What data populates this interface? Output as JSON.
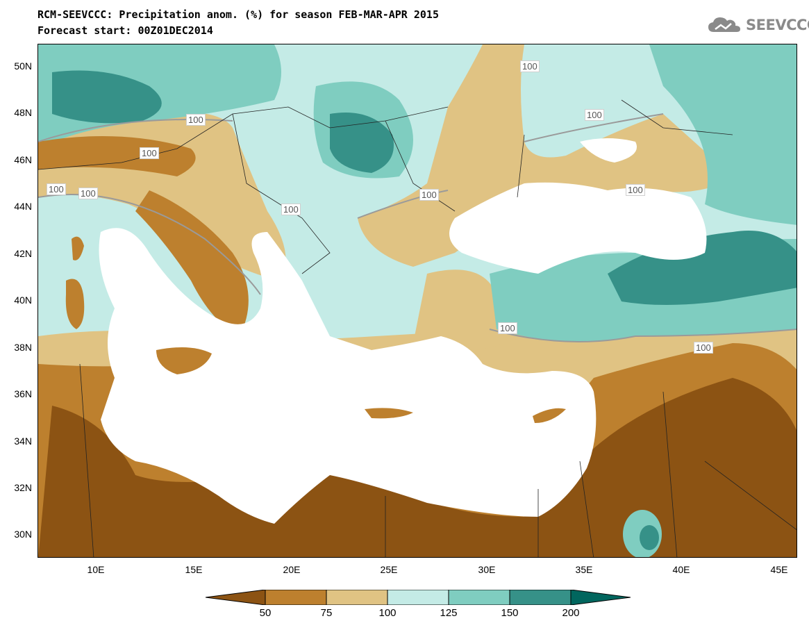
{
  "title_line1": "RCM-SEEVCCC: Precipitation anom. (%) for season FEB-MAR-APR 2015",
  "title_line2": "Forecast start: 00Z01DEC2014",
  "logo_text": "SEEVCCC",
  "lat_labels": [
    "50N",
    "48N",
    "46N",
    "44N",
    "42N",
    "40N",
    "38N",
    "36N",
    "34N",
    "32N",
    "30N"
  ],
  "lon_labels": [
    "10E",
    "15E",
    "20E",
    "25E",
    "30E",
    "35E",
    "40E",
    "45E"
  ],
  "contour_labels": [
    "100",
    "100",
    "100",
    "100",
    "100",
    "100",
    "100",
    "100",
    "100",
    "100",
    "100"
  ],
  "colorbar": {
    "levels": [
      "50",
      "75",
      "100",
      "125",
      "150",
      "200"
    ],
    "colors": [
      "#8c5313",
      "#bd802e",
      "#e0c383",
      "#c4ebe6",
      "#7fcdc0",
      "#369188",
      "#01665e"
    ]
  },
  "colors": {
    "land_dry_strong": "#8c5313",
    "land_dry": "#bd802e",
    "land_dry_light": "#e0c383",
    "land_wet_light": "#c4ebe6",
    "land_wet": "#7fcdc0",
    "land_wet_strong": "#369188",
    "sea": "#ffffff"
  }
}
